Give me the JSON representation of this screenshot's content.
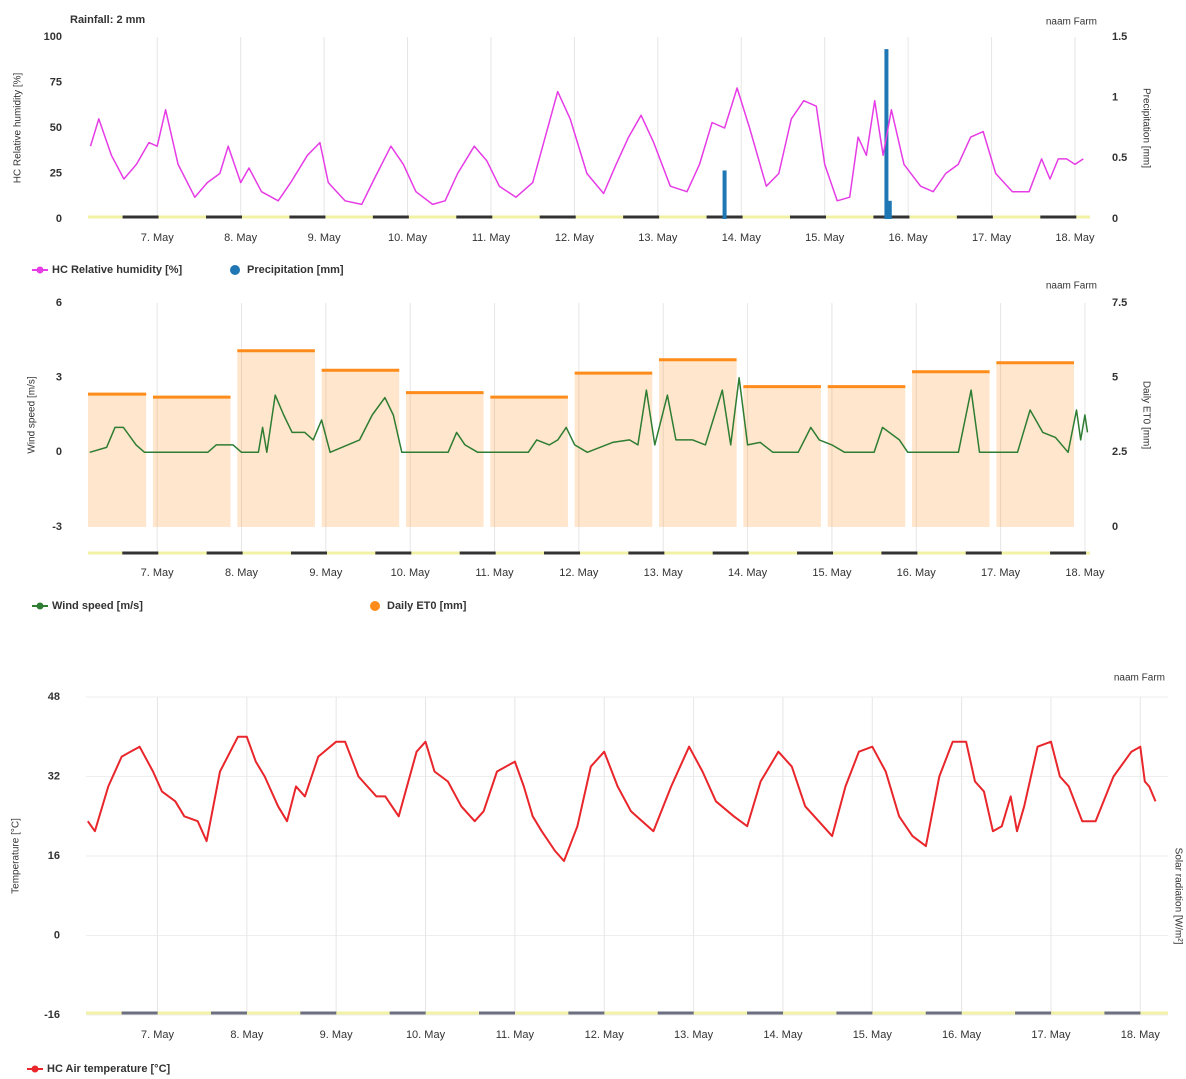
{
  "chart_data": [
    {
      "type": "line",
      "annotation": "Rainfall: 2 mm",
      "subtitle": "naam Farm",
      "y_label": "HC Relative humidity [%]",
      "y2_label": "Precipitation [mm]",
      "xlim": [
        6.17,
        18.18
      ],
      "xticks": [
        {
          "value": 7,
          "label": "7. May"
        },
        {
          "value": 8,
          "label": "8. May"
        },
        {
          "value": 9,
          "label": "9. May"
        },
        {
          "value": 10,
          "label": "10. May"
        },
        {
          "value": 11,
          "label": "11. May"
        },
        {
          "value": 12,
          "label": "12. May"
        },
        {
          "value": 13,
          "label": "13. May"
        },
        {
          "value": 14,
          "label": "14. May"
        },
        {
          "value": 15,
          "label": "15. May"
        },
        {
          "value": 16,
          "label": "16. May"
        },
        {
          "value": 17,
          "label": "17. May"
        },
        {
          "value": 18,
          "label": "18. May"
        }
      ],
      "ylim": [
        0,
        100
      ],
      "yticks": [
        0,
        25,
        50,
        75,
        100
      ],
      "y2lim": [
        0,
        1.5
      ],
      "y2ticks": [
        0,
        0.5,
        1,
        1.5
      ],
      "grid": true,
      "series": [
        {
          "name": "HC Relative humidity [%]",
          "type": "line",
          "color": "#e63ce6",
          "x": [
            6.2,
            6.3,
            6.45,
            6.6,
            6.75,
            6.9,
            7.0,
            7.1,
            7.25,
            7.45,
            7.6,
            7.75,
            7.85,
            8.0,
            8.1,
            8.25,
            8.45,
            8.6,
            8.8,
            8.95,
            9.05,
            9.25,
            9.45,
            9.6,
            9.8,
            9.95,
            10.1,
            10.3,
            10.45,
            10.6,
            10.8,
            10.95,
            11.1,
            11.3,
            11.5,
            11.65,
            11.8,
            11.95,
            12.15,
            12.35,
            12.5,
            12.65,
            12.8,
            12.95,
            13.15,
            13.35,
            13.5,
            13.65,
            13.8,
            13.95,
            14.1,
            14.3,
            14.45,
            14.6,
            14.75,
            14.9,
            15.0,
            15.15,
            15.3,
            15.4,
            15.5,
            15.6,
            15.7,
            15.8,
            15.95,
            16.15,
            16.3,
            16.45,
            16.6,
            16.75,
            16.9,
            17.05,
            17.25,
            17.45,
            17.6,
            17.7,
            17.8,
            17.9,
            18.0,
            18.1
          ],
          "values": [
            40,
            55,
            35,
            22,
            30,
            42,
            40,
            60,
            30,
            12,
            20,
            25,
            40,
            20,
            28,
            15,
            10,
            20,
            35,
            42,
            20,
            10,
            8,
            22,
            40,
            30,
            15,
            8,
            10,
            25,
            40,
            32,
            18,
            12,
            20,
            45,
            70,
            55,
            25,
            14,
            30,
            45,
            57,
            42,
            18,
            15,
            30,
            53,
            50,
            72,
            50,
            18,
            25,
            55,
            65,
            62,
            30,
            10,
            12,
            45,
            35,
            65,
            35,
            60,
            30,
            18,
            15,
            25,
            30,
            45,
            48,
            25,
            15,
            15,
            33,
            22,
            33,
            33,
            30,
            33
          ]
        },
        {
          "name": "Precipitation [mm]",
          "type": "bar",
          "axis": "y2",
          "color": "#1f77b4",
          "x": [
            13.8,
            15.74,
            15.78
          ],
          "values": [
            0.4,
            1.4,
            0.15
          ]
        }
      ]
    },
    {
      "type": "line",
      "subtitle": "naam Farm",
      "y_label": "Wind speed [m/s]",
      "y2_label": "Daily ET0 [mm]",
      "xlim": [
        6.18,
        18.06
      ],
      "xticks": [
        {
          "value": 7,
          "label": "7. May"
        },
        {
          "value": 8,
          "label": "8. May"
        },
        {
          "value": 9,
          "label": "9. May"
        },
        {
          "value": 10,
          "label": "10. May"
        },
        {
          "value": 11,
          "label": "11. May"
        },
        {
          "value": 12,
          "label": "12. May"
        },
        {
          "value": 13,
          "label": "13. May"
        },
        {
          "value": 14,
          "label": "14. May"
        },
        {
          "value": 15,
          "label": "15. May"
        },
        {
          "value": 16,
          "label": "16. May"
        },
        {
          "value": 17,
          "label": "17. May"
        },
        {
          "value": 18,
          "label": "18. May"
        }
      ],
      "ylim": [
        -3,
        6
      ],
      "yticks": [
        -3,
        0,
        3,
        6
      ],
      "y2lim": [
        0,
        7.5
      ],
      "y2ticks": [
        0,
        2.5,
        5,
        7.5
      ],
      "grid": true,
      "series": [
        {
          "name": "Wind speed [m/s]",
          "type": "line",
          "color": "#2e7d32",
          "x": [
            6.2,
            6.4,
            6.5,
            6.6,
            6.75,
            6.85,
            7.6,
            7.7,
            7.9,
            8.0,
            8.2,
            8.25,
            8.3,
            8.4,
            8.5,
            8.6,
            8.75,
            8.85,
            8.95,
            9.05,
            9.4,
            9.55,
            9.7,
            9.8,
            9.9,
            10.45,
            10.55,
            10.65,
            10.8,
            11.4,
            11.5,
            11.65,
            11.75,
            11.85,
            11.95,
            12.1,
            12.4,
            12.6,
            12.7,
            12.8,
            12.9,
            13.05,
            13.15,
            13.35,
            13.5,
            13.7,
            13.8,
            13.9,
            14.0,
            14.15,
            14.3,
            14.6,
            14.75,
            14.85,
            15.0,
            15.15,
            15.5,
            15.6,
            15.8,
            15.9,
            16.5,
            16.65,
            16.75,
            17.2,
            17.35,
            17.5,
            17.65,
            17.8,
            17.9,
            17.95,
            18.0,
            18.03
          ],
          "values": [
            0,
            0.2,
            1,
            1,
            0.3,
            0,
            0,
            0.3,
            0.3,
            0,
            0,
            1,
            0,
            2.3,
            1.5,
            0.8,
            0.8,
            0.5,
            1.3,
            0,
            0.5,
            1.5,
            2.2,
            1.5,
            0,
            0,
            0.8,
            0.3,
            0,
            0,
            0.5,
            0.3,
            0.5,
            1,
            0.3,
            0,
            0.4,
            0.5,
            0.3,
            2.5,
            0.3,
            2.3,
            0.5,
            0.5,
            0.3,
            2.5,
            0.3,
            3,
            0.3,
            0.4,
            0,
            0,
            1,
            0.5,
            0.3,
            0,
            0,
            1,
            0.5,
            0,
            0,
            2.5,
            0,
            0,
            1.7,
            0.8,
            0.6,
            0,
            1.7,
            0.5,
            1.5,
            0.8
          ]
        },
        {
          "name": "Daily ET0 [mm]",
          "type": "bar",
          "axis": "y2",
          "color": "#ff8c1a",
          "x": [
            6,
            7,
            8,
            9,
            10,
            11,
            12,
            13,
            14,
            15,
            16,
            17
          ],
          "values": [
            4.45,
            4.35,
            5.9,
            5.25,
            4.5,
            4.35,
            5.15,
            5.6,
            4.7,
            4.7,
            5.2,
            5.5
          ]
        }
      ]
    },
    {
      "type": "line",
      "subtitle": "naam Farm",
      "y_label": "Temperature [°C]",
      "y2_label": "Solar radiation [W/m²]",
      "xlim": [
        6.2,
        18.31
      ],
      "xticks": [
        {
          "value": 7,
          "label": "7. May"
        },
        {
          "value": 8,
          "label": "8. May"
        },
        {
          "value": 9,
          "label": "9. May"
        },
        {
          "value": 10,
          "label": "10. May"
        },
        {
          "value": 11,
          "label": "11. May"
        },
        {
          "value": 12,
          "label": "12. May"
        },
        {
          "value": 13,
          "label": "13. May"
        },
        {
          "value": 14,
          "label": "14. May"
        },
        {
          "value": 15,
          "label": "15. May"
        },
        {
          "value": 16,
          "label": "16. May"
        },
        {
          "value": 17,
          "label": "17. May"
        },
        {
          "value": 18,
          "label": "18. May"
        }
      ],
      "ylim": [
        -16,
        48
      ],
      "yticks": [
        -16,
        0,
        16,
        32,
        48
      ],
      "grid": true,
      "series": [
        {
          "name": "HC Air temperature [°C]",
          "type": "line",
          "color": "#e8262b",
          "x": [
            6.22,
            6.3,
            6.45,
            6.6,
            6.8,
            6.95,
            7.05,
            7.2,
            7.3,
            7.45,
            7.55,
            7.7,
            7.9,
            8.0,
            8.1,
            8.2,
            8.35,
            8.45,
            8.55,
            8.65,
            8.8,
            9.0,
            9.1,
            9.25,
            9.45,
            9.55,
            9.7,
            9.9,
            10.0,
            10.1,
            10.25,
            10.4,
            10.55,
            10.65,
            10.8,
            11.0,
            11.1,
            11.2,
            11.3,
            11.45,
            11.55,
            11.7,
            11.85,
            12.0,
            12.15,
            12.3,
            12.55,
            12.75,
            12.95,
            13.1,
            13.25,
            13.45,
            13.6,
            13.75,
            13.95,
            14.1,
            14.25,
            14.4,
            14.55,
            14.7,
            14.85,
            15.0,
            15.15,
            15.3,
            15.45,
            15.6,
            15.75,
            15.9,
            16.05,
            16.15,
            16.25,
            16.35,
            16.45,
            16.55,
            16.62,
            16.7,
            16.85,
            17.0,
            17.1,
            17.2,
            17.35,
            17.5,
            17.7,
            17.9,
            18.0,
            18.05,
            18.1,
            18.17
          ],
          "values": [
            23,
            21,
            30,
            36,
            38,
            33,
            29,
            27,
            24,
            23,
            19,
            33,
            40,
            40,
            35,
            32,
            26,
            23,
            30,
            28,
            36,
            39,
            39,
            32,
            28,
            28,
            24,
            37,
            39,
            33,
            31,
            26,
            23,
            25,
            33,
            35,
            30,
            24,
            21,
            17,
            15,
            22,
            34,
            37,
            30,
            25,
            21,
            30,
            38,
            33,
            27,
            24,
            22,
            31,
            37,
            34,
            26,
            23,
            20,
            30,
            37,
            38,
            33,
            24,
            20,
            18,
            32,
            39,
            39,
            31,
            29,
            21,
            22,
            28,
            21,
            26,
            38,
            39,
            32,
            30,
            23,
            23,
            32,
            37,
            38,
            31,
            30,
            27
          ]
        }
      ]
    }
  ]
}
